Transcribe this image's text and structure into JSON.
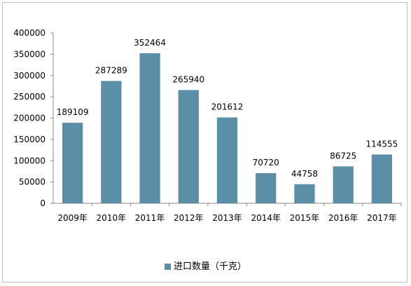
{
  "chart_data": {
    "type": "bar",
    "title": "",
    "xlabel": "",
    "ylabel": "",
    "categories": [
      "2009年",
      "2010年",
      "2011年",
      "2012年",
      "2013年",
      "2014年",
      "2015年",
      "2016年",
      "2017年"
    ],
    "series": [
      {
        "name": "进口数量（千克）",
        "values": [
          189109,
          287289,
          352464,
          265940,
          201612,
          70720,
          44758,
          86725,
          114555
        ],
        "color": "#5b8fa8"
      }
    ],
    "ylim": [
      0,
      400000
    ],
    "yticks": [
      "0",
      "50000",
      "100000",
      "150000",
      "200000",
      "250000",
      "300000",
      "350000",
      "400000"
    ],
    "grid": false,
    "legend_position": "bottom",
    "data_labels": true
  }
}
